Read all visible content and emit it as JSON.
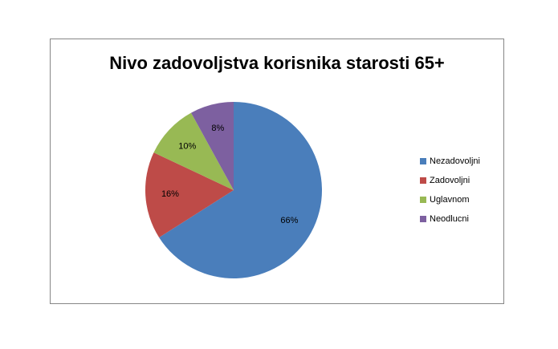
{
  "chart_data": {
    "type": "pie",
    "title": "Nivo zadovoljstva korisnika starosti 65+",
    "categories": [
      "Nezadovoljni",
      "Zadovoljni",
      "Uglavnom",
      "Neodlucni"
    ],
    "values": [
      66,
      16,
      10,
      8
    ],
    "value_labels": [
      "66%",
      "16%",
      "10%",
      "8%"
    ],
    "colors": [
      "#4a7ebb",
      "#be4b48",
      "#98b954",
      "#7d60a0"
    ],
    "legend": "right"
  }
}
